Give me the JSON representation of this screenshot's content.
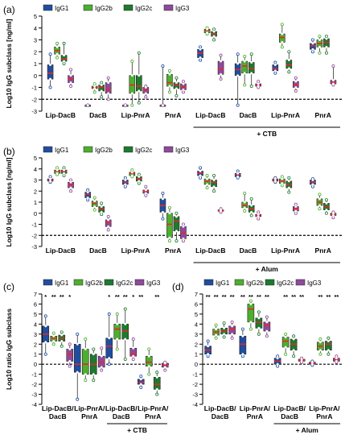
{
  "series_colors": {
    "IgG1": "#1f4e9e",
    "IgG2b": "#4caf2e",
    "IgG2c": "#1d7a2e",
    "IgG3": "#8e4a9c"
  },
  "median_color": "#e8252a",
  "chart_data": [
    {
      "panel": "(a)",
      "type": "box",
      "legend": [
        "IgG1",
        "IgG2b",
        "IgG2c",
        "IgG3"
      ],
      "ylabel": "Log10 IgG subclass [ng/ml]",
      "yticks": [
        "-3",
        "-2",
        "-1",
        "0",
        "1",
        "2",
        "3",
        "4",
        "5"
      ],
      "ylim": [
        -3,
        5
      ],
      "dashed_line_y": -2,
      "categories": [
        "Lip-DacB",
        "DacB",
        "Lip-PnrA",
        "PnrA",
        "Lip-DacB",
        "DacB",
        "Lip-PnrA",
        "PnrA"
      ],
      "group_label": "+ CTB",
      "group_indices": [
        4,
        7
      ],
      "boxes": [
        [
          [
            -1.0,
            -0.3,
            0.2,
            0.9,
            1.8
          ],
          [
            1.5,
            1.8,
            2.1,
            2.4,
            2.7
          ],
          [
            1.0,
            1.2,
            1.4,
            1.7,
            2.7
          ],
          [
            -0.9,
            -0.6,
            -0.3,
            0.0,
            0.5
          ]
        ],
        [
          [
            -2.5,
            -2.5,
            -2.5,
            -2.5,
            -2.5
          ],
          [
            -1.4,
            -1.1,
            -1.0,
            -0.9,
            -0.7
          ],
          [
            -1.8,
            -1.3,
            -1.0,
            -0.8,
            -0.6
          ],
          [
            -2.0,
            -1.5,
            -1.2,
            -0.6,
            -0.2
          ]
        ],
        [
          [
            -2.5,
            -2.5,
            -2.5,
            -2.5,
            -2.5
          ],
          [
            -2.5,
            -1.5,
            -0.8,
            0.0,
            1.2
          ],
          [
            -2.3,
            -1.3,
            -0.9,
            0.0,
            1.9
          ],
          [
            -1.8,
            -1.5,
            -1.2,
            -1.0,
            -0.9
          ]
        ],
        [
          [
            -2.5,
            -2.5,
            -2.5,
            -2.5,
            0.8
          ],
          [
            -1.4,
            -0.9,
            -0.6,
            0.1,
            0.4
          ],
          [
            -1.7,
            -1.1,
            -0.8,
            -0.6,
            -0.2
          ],
          [
            -1.4,
            -1.2,
            -1.0,
            -0.7,
            -0.5
          ]
        ],
        [
          [
            1.3,
            1.5,
            1.9,
            2.2,
            2.4
          ],
          [
            3.5,
            3.6,
            3.8,
            3.9,
            4.0
          ],
          [
            3.0,
            3.3,
            3.5,
            3.7,
            3.9
          ],
          [
            -0.3,
            0.1,
            0.5,
            1.2,
            1.7
          ]
        ],
        [
          [
            -2.5,
            0.0,
            0.5,
            1.0,
            1.8
          ],
          [
            -0.8,
            0.2,
            0.8,
            1.2,
            1.6
          ],
          [
            -0.9,
            0.2,
            0.6,
            1.1,
            1.8
          ],
          [
            -1.0,
            -0.9,
            -0.8,
            -0.7,
            -0.5
          ]
        ],
        [
          [
            0.2,
            0.4,
            0.6,
            0.9,
            1.1
          ],
          [
            2.4,
            2.8,
            3.2,
            3.5,
            4.3
          ],
          [
            0.3,
            0.6,
            0.9,
            1.3,
            2.0
          ],
          [
            -1.3,
            -1.0,
            -0.8,
            -0.5,
            -0.2
          ]
        ],
        [
          [
            2.0,
            2.2,
            2.5,
            2.7,
            3.0
          ],
          [
            1.9,
            2.4,
            2.7,
            3.0,
            3.3
          ],
          [
            1.9,
            2.4,
            2.8,
            3.1,
            3.3
          ],
          [
            -0.8,
            -0.7,
            -0.6,
            -0.4,
            0.8
          ]
        ]
      ]
    },
    {
      "panel": "(b)",
      "type": "box",
      "legend": [
        "IgG1",
        "IgG2b",
        "IgG2c",
        "IgG3"
      ],
      "ylabel": "Log10 IgG subclass [ng/ml]",
      "yticks": [
        "-3",
        "-2",
        "-1",
        "0",
        "1",
        "2",
        "3",
        "4",
        "5"
      ],
      "ylim": [
        -3,
        5
      ],
      "dashed_line_y": -2,
      "categories": [
        "Lip-DacB",
        "DacB",
        "Lip-PnrA",
        "PnrA",
        "Lip-DacB",
        "DacB",
        "Lip-PnrA",
        "PnrA"
      ],
      "group_label": "+ Alum",
      "group_indices": [
        4,
        7
      ],
      "boxes": [
        [
          [
            2.8,
            2.9,
            3.0,
            3.1,
            3.3
          ],
          [
            3.5,
            3.6,
            3.8,
            3.9,
            4.1
          ],
          [
            3.4,
            3.6,
            3.8,
            3.9,
            4.1
          ],
          [
            2.0,
            2.3,
            2.6,
            2.8,
            3.0
          ]
        ],
        [
          [
            1.2,
            1.4,
            1.7,
            1.9,
            2.1
          ],
          [
            0.3,
            0.6,
            0.9,
            1.1,
            1.4
          ],
          [
            -0.1,
            0.1,
            0.4,
            0.6,
            0.9
          ],
          [
            -1.5,
            -1.2,
            -0.8,
            -0.6,
            -0.3
          ]
        ],
        [
          [
            2.4,
            2.6,
            2.8,
            3.0,
            3.2
          ],
          [
            3.3,
            3.4,
            3.6,
            3.7,
            3.9
          ],
          [
            2.7,
            2.9,
            3.1,
            3.3,
            3.5
          ],
          [
            1.6,
            1.8,
            2.0,
            2.1,
            2.4
          ]
        ],
        [
          [
            -0.5,
            0.1,
            0.7,
            1.3,
            1.8
          ],
          [
            -2.5,
            -2.2,
            -1.0,
            0.0,
            0.5
          ],
          [
            -2.5,
            -1.6,
            -0.7,
            -0.3,
            0.0
          ],
          [
            -2.5,
            -2.3,
            -1.8,
            -1.2,
            -1.0
          ]
        ],
        [
          [
            3.2,
            3.4,
            3.6,
            3.8,
            4.1
          ],
          [
            2.3,
            2.6,
            2.9,
            3.1,
            3.4
          ],
          [
            2.0,
            2.4,
            2.8,
            3.0,
            3.4
          ],
          [
            0.1,
            0.2,
            0.2,
            0.3,
            0.4
          ]
        ],
        [
          [
            3.2,
            3.3,
            3.5,
            3.6,
            3.8
          ],
          [
            0.2,
            0.5,
            0.7,
            1.0,
            1.8
          ],
          [
            -0.2,
            0.1,
            0.4,
            0.7,
            1.3
          ],
          [
            -0.5,
            -0.3,
            -0.2,
            -0.1,
            0.1
          ]
        ],
        [
          [
            2.8,
            2.9,
            3.0,
            3.1,
            3.2
          ],
          [
            2.5,
            2.7,
            2.9,
            3.1,
            3.3
          ],
          [
            1.9,
            2.3,
            2.6,
            2.9,
            3.2
          ],
          [
            0.0,
            0.2,
            0.4,
            0.6,
            0.8
          ]
        ],
        [
          [
            2.4,
            2.6,
            2.8,
            3.0,
            3.1
          ],
          [
            0.4,
            0.7,
            1.0,
            1.3,
            1.7
          ],
          [
            0.0,
            0.3,
            0.6,
            0.9,
            1.2
          ],
          [
            -0.4,
            -0.2,
            -0.1,
            0.0,
            0.1
          ]
        ]
      ]
    },
    {
      "panel": "(c)",
      "type": "box",
      "legend": [
        "IgG1",
        "IgG2b",
        "IgG2c",
        "IgG3"
      ],
      "ylabel": "Log10 ratio IgG subclass",
      "yticks": [
        "-4",
        "-3",
        "-2",
        "-1",
        "0",
        "1",
        "2",
        "3",
        "4",
        "5",
        "6",
        "7"
      ],
      "ylim": [
        -4,
        7
      ],
      "dashed_line_y": 0,
      "categories": [
        "Lip-DacB/\nDacB",
        "Lip-PnrA/\nPnrA",
        "Lip-DacB/\nDacB",
        "Lip-PnrA/\nPnrA"
      ],
      "group_label": "+ CTB",
      "group_indices": [
        2,
        3
      ],
      "significance": [
        [
          "*",
          "**",
          "**",
          "*"
        ],
        [
          "",
          "",
          "",
          ""
        ],
        [
          "*",
          "**",
          "**",
          "*"
        ],
        [
          "**",
          "",
          "**",
          ""
        ]
      ],
      "boxes": [
        [
          [
            1.0,
            2.2,
            3.0,
            3.8,
            4.8
          ],
          [
            2.0,
            2.3,
            2.6,
            2.8,
            3.1
          ],
          [
            1.8,
            2.3,
            2.6,
            2.9,
            3.2
          ],
          [
            -0.2,
            0.3,
            1.0,
            1.5,
            2.0
          ]
        ],
        [
          [
            -3.5,
            -0.8,
            0.0,
            2.0,
            3.0
          ],
          [
            -1.6,
            -1.0,
            0.0,
            1.5,
            2.5
          ],
          [
            -1.6,
            -1.0,
            0.0,
            1.0,
            1.5
          ],
          [
            -0.6,
            -0.3,
            0.2,
            0.8,
            1.6
          ]
        ],
        [
          [
            0.0,
            0.6,
            1.8,
            2.6,
            5.0
          ],
          [
            1.5,
            2.5,
            3.5,
            4.0,
            5.0
          ],
          [
            0.5,
            2.5,
            3.3,
            4.0,
            5.5
          ],
          [
            0.5,
            0.8,
            1.0,
            1.6,
            2.5
          ]
        ],
        [
          [
            -2.3,
            -2.0,
            -1.8,
            -1.5,
            -1.2
          ],
          [
            -1.0,
            -0.2,
            0.2,
            0.8,
            1.5
          ],
          [
            -3.0,
            -2.5,
            -2.0,
            -1.3,
            -0.8
          ],
          [
            -0.6,
            -0.3,
            -0.1,
            0.1,
            0.2
          ]
        ]
      ]
    },
    {
      "panel": "(d)",
      "type": "box",
      "legend": [
        "IgG1",
        "IgG2b",
        "IgG2c",
        "IgG3"
      ],
      "ylabel": "",
      "yticks": [
        "-4",
        "-3",
        "-2",
        "-1",
        "0",
        "1",
        "2",
        "3",
        "4",
        "5",
        "6",
        "7"
      ],
      "ylim": [
        -4,
        7
      ],
      "dashed_line_y": 0,
      "categories": [
        "Lip-DacB/\nDacB",
        "Lip-PnrA/\nPnrA",
        "Lip-DacB/\nDacB",
        "Lip-PnrA/\nPnrA"
      ],
      "group_label": "+ Alum",
      "group_indices": [
        2,
        3
      ],
      "significance": [
        [
          "**",
          "**",
          "**",
          "**"
        ],
        [
          "**",
          "**",
          "**",
          "**"
        ],
        [
          "",
          "**",
          "**",
          "**"
        ],
        [
          "",
          "**",
          "**",
          "**"
        ]
      ],
      "boxes": [
        [
          [
            0.8,
            1.0,
            1.4,
            1.8,
            2.3
          ],
          [
            2.6,
            2.9,
            3.2,
            3.5,
            3.9
          ],
          [
            2.7,
            3.0,
            3.3,
            3.6,
            4.1
          ],
          [
            2.6,
            3.0,
            3.5,
            3.8,
            4.2
          ]
        ],
        [
          [
            0.8,
            1.0,
            2.0,
            2.8,
            3.5
          ],
          [
            3.5,
            4.2,
            5.5,
            6.0,
            6.3
          ],
          [
            3.0,
            3.6,
            4.2,
            4.6,
            5.2
          ],
          [
            2.8,
            3.3,
            3.9,
            4.2,
            4.7
          ]
        ],
        [
          [
            -0.2,
            0.0,
            0.3,
            0.6,
            0.8
          ],
          [
            1.0,
            1.7,
            2.3,
            2.7,
            3.0
          ],
          [
            0.8,
            1.4,
            2.0,
            2.5,
            2.8
          ],
          [
            0.2,
            0.3,
            0.4,
            0.5,
            0.6
          ]
        ],
        [
          [
            -0.1,
            0.0,
            0.1,
            0.2,
            0.3
          ],
          [
            1.0,
            1.4,
            1.8,
            2.2,
            2.5
          ],
          [
            1.0,
            1.4,
            2.0,
            2.3,
            2.6
          ],
          [
            0.2,
            0.3,
            0.5,
            0.6,
            0.8
          ]
        ]
      ]
    }
  ]
}
